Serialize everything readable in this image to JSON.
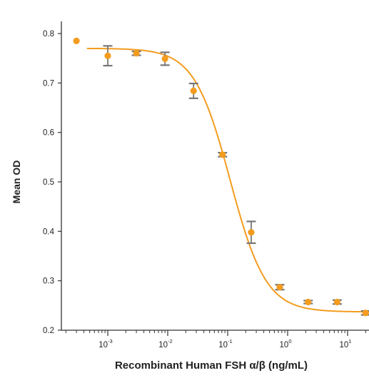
{
  "chart_data": {
    "type": "scatter",
    "title": "",
    "xlabel": "Recombinant Human FSH α/β (ng/mL)",
    "ylabel": "Mean OD",
    "xscale": "log",
    "xlim": [
      0.00025,
      15
    ],
    "ylim": [
      0.2,
      0.82
    ],
    "yticks": [
      "0.2",
      "0.3",
      "0.4",
      "0.5",
      "0.6",
      "0.7",
      "0.8"
    ],
    "xticks": [
      {
        "base": "10",
        "exp": "-3"
      },
      {
        "base": "10",
        "exp": "-2"
      },
      {
        "base": "10",
        "exp": "-1"
      },
      {
        "base": "10",
        "exp": "0"
      },
      {
        "base": "10",
        "exp": "1"
      }
    ],
    "series": [
      {
        "color": "#f39c1f",
        "points": [
          {
            "x": 0.0003,
            "y": 0.785,
            "err": 0
          },
          {
            "x": 0.001,
            "y": 0.755,
            "err": 0.02
          },
          {
            "x": 0.003,
            "y": 0.76,
            "err": 0.004
          },
          {
            "x": 0.009,
            "y": 0.749,
            "err": 0.013
          },
          {
            "x": 0.027,
            "y": 0.684,
            "err": 0.015
          },
          {
            "x": 0.082,
            "y": 0.555,
            "err": 0.004
          },
          {
            "x": 0.247,
            "y": 0.398,
            "err": 0.022
          },
          {
            "x": 0.74,
            "y": 0.287,
            "err": 0.005
          },
          {
            "x": 2.2,
            "y": 0.257,
            "err": 0.003
          },
          {
            "x": 6.7,
            "y": 0.257,
            "err": 0.004
          },
          {
            "x": 20,
            "y": 0.235,
            "err": 0.004
          }
        ]
      }
    ],
    "curve": {
      "type": "4PL",
      "top": 0.77,
      "bottom": 0.237,
      "ec50": 0.11,
      "hill": 1.45,
      "color": "#f39c1f"
    },
    "errorbar_color": "#777777",
    "axis_color": "#333333",
    "grid": false
  }
}
